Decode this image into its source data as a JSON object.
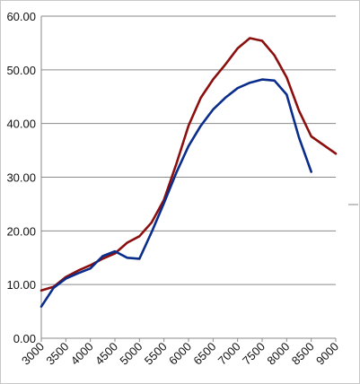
{
  "chart_data": {
    "type": "line",
    "title": "",
    "xlabel": "",
    "ylabel": "",
    "ylim": [
      0,
      60
    ],
    "xlim": [
      3000,
      9000
    ],
    "y_ticks": [
      "0.00",
      "10.00",
      "20.00",
      "30.00",
      "40.00",
      "50.00",
      "60.00"
    ],
    "x_ticks": [
      "3000",
      "3500",
      "4000",
      "4500",
      "5000",
      "5500",
      "6000",
      "6500",
      "7000",
      "7500",
      "8000",
      "8500",
      "9000"
    ],
    "grid": true,
    "series": [
      {
        "color": "#8b0f0f",
        "points": [
          [
            3000,
            8.9
          ],
          [
            3250,
            9.6
          ],
          [
            3500,
            11.4
          ],
          [
            3750,
            12.6
          ],
          [
            4000,
            13.6
          ],
          [
            4250,
            14.8
          ],
          [
            4500,
            15.8
          ],
          [
            4750,
            17.8
          ],
          [
            5000,
            19.0
          ],
          [
            5250,
            21.6
          ],
          [
            5500,
            25.8
          ],
          [
            5750,
            32.4
          ],
          [
            6000,
            39.6
          ],
          [
            6250,
            44.8
          ],
          [
            6500,
            48.2
          ],
          [
            6750,
            51.0
          ],
          [
            7000,
            54.0
          ],
          [
            7250,
            55.9
          ],
          [
            7500,
            55.4
          ],
          [
            7750,
            52.7
          ],
          [
            8000,
            48.6
          ],
          [
            8250,
            42.4
          ],
          [
            8500,
            37.6
          ],
          [
            9000,
            34.4
          ]
        ]
      },
      {
        "color": "#0a2d8c",
        "points": [
          [
            3000,
            5.9
          ],
          [
            3250,
            9.4
          ],
          [
            3500,
            11.1
          ],
          [
            3750,
            12.1
          ],
          [
            4000,
            13.0
          ],
          [
            4250,
            15.3
          ],
          [
            4500,
            16.2
          ],
          [
            4750,
            15.0
          ],
          [
            5000,
            14.8
          ],
          [
            5250,
            19.8
          ],
          [
            5500,
            25.2
          ],
          [
            5750,
            30.8
          ],
          [
            6000,
            35.8
          ],
          [
            6250,
            39.6
          ],
          [
            6500,
            42.6
          ],
          [
            6750,
            44.8
          ],
          [
            7000,
            46.6
          ],
          [
            7250,
            47.6
          ],
          [
            7500,
            48.2
          ],
          [
            7750,
            48.0
          ],
          [
            8000,
            45.4
          ],
          [
            8250,
            37.4
          ],
          [
            8500,
            31.0
          ]
        ]
      }
    ]
  }
}
